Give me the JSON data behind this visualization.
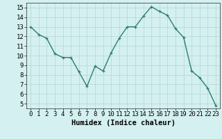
{
  "x": [
    0,
    1,
    2,
    3,
    4,
    5,
    6,
    7,
    8,
    9,
    10,
    11,
    12,
    13,
    14,
    15,
    16,
    17,
    18,
    19,
    20,
    21,
    22,
    23
  ],
  "y": [
    13.0,
    12.2,
    11.8,
    10.2,
    9.8,
    9.8,
    8.3,
    6.8,
    8.9,
    8.4,
    10.3,
    11.8,
    13.0,
    13.0,
    14.1,
    15.1,
    14.6,
    14.2,
    12.8,
    11.9,
    8.4,
    7.7,
    6.6,
    4.8
  ],
  "line_color": "#2d7d6e",
  "marker_color": "#2d7d6e",
  "bg_color": "#d4f0f0",
  "grid_color": "#b8dada",
  "xlabel": "Humidex (Indice chaleur)",
  "xlim": [
    -0.5,
    23.5
  ],
  "ylim": [
    4.5,
    15.5
  ],
  "yticks": [
    5,
    6,
    7,
    8,
    9,
    10,
    11,
    12,
    13,
    14,
    15
  ],
  "xticks": [
    0,
    1,
    2,
    3,
    4,
    5,
    6,
    7,
    8,
    9,
    10,
    11,
    12,
    13,
    14,
    15,
    16,
    17,
    18,
    19,
    20,
    21,
    22,
    23
  ],
  "tick_label_fontsize": 6.5,
  "xlabel_fontsize": 7.5,
  "line_width": 1.0,
  "marker_size": 2.5
}
